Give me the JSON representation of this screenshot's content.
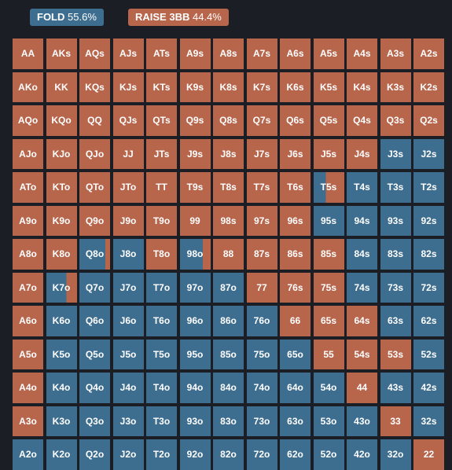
{
  "legend": [
    {
      "label": "FOLD",
      "pct": "55.6%",
      "color": "#3d6d8f"
    },
    {
      "label": "RAISE 3BB",
      "pct": "44.4%",
      "color": "#b7654b"
    }
  ],
  "colors": {
    "fold": "#3d6d8f",
    "raise": "#b7654b",
    "background": "#1b1e24"
  },
  "rows": [
    [
      {
        "hand": "AA",
        "fold": 0
      },
      {
        "hand": "AKs",
        "fold": 0
      },
      {
        "hand": "AQs",
        "fold": 0
      },
      {
        "hand": "AJs",
        "fold": 0
      },
      {
        "hand": "ATs",
        "fold": 0
      },
      {
        "hand": "A9s",
        "fold": 0
      },
      {
        "hand": "A8s",
        "fold": 0
      },
      {
        "hand": "A7s",
        "fold": 0
      },
      {
        "hand": "A6s",
        "fold": 0
      },
      {
        "hand": "A5s",
        "fold": 0
      },
      {
        "hand": "A4s",
        "fold": 0
      },
      {
        "hand": "A3s",
        "fold": 0
      },
      {
        "hand": "A2s",
        "fold": 0
      }
    ],
    [
      {
        "hand": "AKo",
        "fold": 0
      },
      {
        "hand": "KK",
        "fold": 0
      },
      {
        "hand": "KQs",
        "fold": 0
      },
      {
        "hand": "KJs",
        "fold": 0
      },
      {
        "hand": "KTs",
        "fold": 0
      },
      {
        "hand": "K9s",
        "fold": 0
      },
      {
        "hand": "K8s",
        "fold": 0
      },
      {
        "hand": "K7s",
        "fold": 0
      },
      {
        "hand": "K6s",
        "fold": 0
      },
      {
        "hand": "K5s",
        "fold": 0
      },
      {
        "hand": "K4s",
        "fold": 0
      },
      {
        "hand": "K3s",
        "fold": 0
      },
      {
        "hand": "K2s",
        "fold": 0
      }
    ],
    [
      {
        "hand": "AQo",
        "fold": 0
      },
      {
        "hand": "KQo",
        "fold": 0
      },
      {
        "hand": "QQ",
        "fold": 0
      },
      {
        "hand": "QJs",
        "fold": 0
      },
      {
        "hand": "QTs",
        "fold": 0
      },
      {
        "hand": "Q9s",
        "fold": 0
      },
      {
        "hand": "Q8s",
        "fold": 0
      },
      {
        "hand": "Q7s",
        "fold": 0
      },
      {
        "hand": "Q6s",
        "fold": 0
      },
      {
        "hand": "Q5s",
        "fold": 0
      },
      {
        "hand": "Q4s",
        "fold": 0
      },
      {
        "hand": "Q3s",
        "fold": 0
      },
      {
        "hand": "Q2s",
        "fold": 0
      }
    ],
    [
      {
        "hand": "AJo",
        "fold": 0
      },
      {
        "hand": "KJo",
        "fold": 0
      },
      {
        "hand": "QJo",
        "fold": 0
      },
      {
        "hand": "JJ",
        "fold": 0
      },
      {
        "hand": "JTs",
        "fold": 0
      },
      {
        "hand": "J9s",
        "fold": 0
      },
      {
        "hand": "J8s",
        "fold": 0
      },
      {
        "hand": "J7s",
        "fold": 0
      },
      {
        "hand": "J6s",
        "fold": 0
      },
      {
        "hand": "J5s",
        "fold": 0
      },
      {
        "hand": "J4s",
        "fold": 0
      },
      {
        "hand": "J3s",
        "fold": 1
      },
      {
        "hand": "J2s",
        "fold": 1
      }
    ],
    [
      {
        "hand": "ATo",
        "fold": 0
      },
      {
        "hand": "KTo",
        "fold": 0
      },
      {
        "hand": "QTo",
        "fold": 0
      },
      {
        "hand": "JTo",
        "fold": 0
      },
      {
        "hand": "TT",
        "fold": 0
      },
      {
        "hand": "T9s",
        "fold": 0
      },
      {
        "hand": "T8s",
        "fold": 0
      },
      {
        "hand": "T7s",
        "fold": 0
      },
      {
        "hand": "T6s",
        "fold": 0
      },
      {
        "hand": "T5s",
        "fold": 0.4
      },
      {
        "hand": "T4s",
        "fold": 1
      },
      {
        "hand": "T3s",
        "fold": 1
      },
      {
        "hand": "T2s",
        "fold": 1
      }
    ],
    [
      {
        "hand": "A9o",
        "fold": 0
      },
      {
        "hand": "K9o",
        "fold": 0
      },
      {
        "hand": "Q9o",
        "fold": 0
      },
      {
        "hand": "J9o",
        "fold": 0
      },
      {
        "hand": "T9o",
        "fold": 0
      },
      {
        "hand": "99",
        "fold": 0
      },
      {
        "hand": "98s",
        "fold": 0
      },
      {
        "hand": "97s",
        "fold": 0
      },
      {
        "hand": "96s",
        "fold": 0
      },
      {
        "hand": "95s",
        "fold": 1
      },
      {
        "hand": "94s",
        "fold": 1
      },
      {
        "hand": "93s",
        "fold": 1
      },
      {
        "hand": "92s",
        "fold": 1
      }
    ],
    [
      {
        "hand": "A8o",
        "fold": 0
      },
      {
        "hand": "K8o",
        "fold": 0
      },
      {
        "hand": "Q8o",
        "fold": 0.85
      },
      {
        "hand": "J8o",
        "fold": 1
      },
      {
        "hand": "T8o",
        "fold": 0
      },
      {
        "hand": "98o",
        "fold": 0.75
      },
      {
        "hand": "88",
        "fold": 0
      },
      {
        "hand": "87s",
        "fold": 0
      },
      {
        "hand": "86s",
        "fold": 0
      },
      {
        "hand": "85s",
        "fold": 0
      },
      {
        "hand": "84s",
        "fold": 1
      },
      {
        "hand": "83s",
        "fold": 1
      },
      {
        "hand": "82s",
        "fold": 1
      }
    ],
    [
      {
        "hand": "A7o",
        "fold": 0
      },
      {
        "hand": "K7o",
        "fold": 0.65
      },
      {
        "hand": "Q7o",
        "fold": 1
      },
      {
        "hand": "J7o",
        "fold": 1
      },
      {
        "hand": "T7o",
        "fold": 1
      },
      {
        "hand": "97o",
        "fold": 1
      },
      {
        "hand": "87o",
        "fold": 1
      },
      {
        "hand": "77",
        "fold": 0
      },
      {
        "hand": "76s",
        "fold": 0
      },
      {
        "hand": "75s",
        "fold": 0
      },
      {
        "hand": "74s",
        "fold": 1
      },
      {
        "hand": "73s",
        "fold": 1
      },
      {
        "hand": "72s",
        "fold": 1
      }
    ],
    [
      {
        "hand": "A6o",
        "fold": 0
      },
      {
        "hand": "K6o",
        "fold": 1
      },
      {
        "hand": "Q6o",
        "fold": 1
      },
      {
        "hand": "J6o",
        "fold": 1
      },
      {
        "hand": "T6o",
        "fold": 1
      },
      {
        "hand": "96o",
        "fold": 1
      },
      {
        "hand": "86o",
        "fold": 1
      },
      {
        "hand": "76o",
        "fold": 1
      },
      {
        "hand": "66",
        "fold": 0
      },
      {
        "hand": "65s",
        "fold": 0
      },
      {
        "hand": "64s",
        "fold": 0
      },
      {
        "hand": "63s",
        "fold": 1
      },
      {
        "hand": "62s",
        "fold": 1
      }
    ],
    [
      {
        "hand": "A5o",
        "fold": 0
      },
      {
        "hand": "K5o",
        "fold": 1
      },
      {
        "hand": "Q5o",
        "fold": 1
      },
      {
        "hand": "J5o",
        "fold": 1
      },
      {
        "hand": "T5o",
        "fold": 1
      },
      {
        "hand": "95o",
        "fold": 1
      },
      {
        "hand": "85o",
        "fold": 1
      },
      {
        "hand": "75o",
        "fold": 1
      },
      {
        "hand": "65o",
        "fold": 1
      },
      {
        "hand": "55",
        "fold": 0
      },
      {
        "hand": "54s",
        "fold": 0
      },
      {
        "hand": "53s",
        "fold": 0
      },
      {
        "hand": "52s",
        "fold": 1
      }
    ],
    [
      {
        "hand": "A4o",
        "fold": 0
      },
      {
        "hand": "K4o",
        "fold": 1
      },
      {
        "hand": "Q4o",
        "fold": 1
      },
      {
        "hand": "J4o",
        "fold": 1
      },
      {
        "hand": "T4o",
        "fold": 1
      },
      {
        "hand": "94o",
        "fold": 1
      },
      {
        "hand": "84o",
        "fold": 1
      },
      {
        "hand": "74o",
        "fold": 1
      },
      {
        "hand": "64o",
        "fold": 1
      },
      {
        "hand": "54o",
        "fold": 1
      },
      {
        "hand": "44",
        "fold": 0
      },
      {
        "hand": "43s",
        "fold": 1
      },
      {
        "hand": "42s",
        "fold": 1
      }
    ],
    [
      {
        "hand": "A3o",
        "fold": 0
      },
      {
        "hand": "K3o",
        "fold": 1
      },
      {
        "hand": "Q3o",
        "fold": 1
      },
      {
        "hand": "J3o",
        "fold": 1
      },
      {
        "hand": "T3o",
        "fold": 1
      },
      {
        "hand": "93o",
        "fold": 1
      },
      {
        "hand": "83o",
        "fold": 1
      },
      {
        "hand": "73o",
        "fold": 1
      },
      {
        "hand": "63o",
        "fold": 1
      },
      {
        "hand": "53o",
        "fold": 1
      },
      {
        "hand": "43o",
        "fold": 1
      },
      {
        "hand": "33",
        "fold": 0
      },
      {
        "hand": "32s",
        "fold": 1
      }
    ],
    [
      {
        "hand": "A2o",
        "fold": 1
      },
      {
        "hand": "K2o",
        "fold": 1
      },
      {
        "hand": "Q2o",
        "fold": 1
      },
      {
        "hand": "J2o",
        "fold": 1
      },
      {
        "hand": "T2o",
        "fold": 1
      },
      {
        "hand": "92o",
        "fold": 1
      },
      {
        "hand": "82o",
        "fold": 1
      },
      {
        "hand": "72o",
        "fold": 1
      },
      {
        "hand": "62o",
        "fold": 1
      },
      {
        "hand": "52o",
        "fold": 1
      },
      {
        "hand": "42o",
        "fold": 1
      },
      {
        "hand": "32o",
        "fold": 1
      },
      {
        "hand": "22",
        "fold": 0
      }
    ]
  ]
}
